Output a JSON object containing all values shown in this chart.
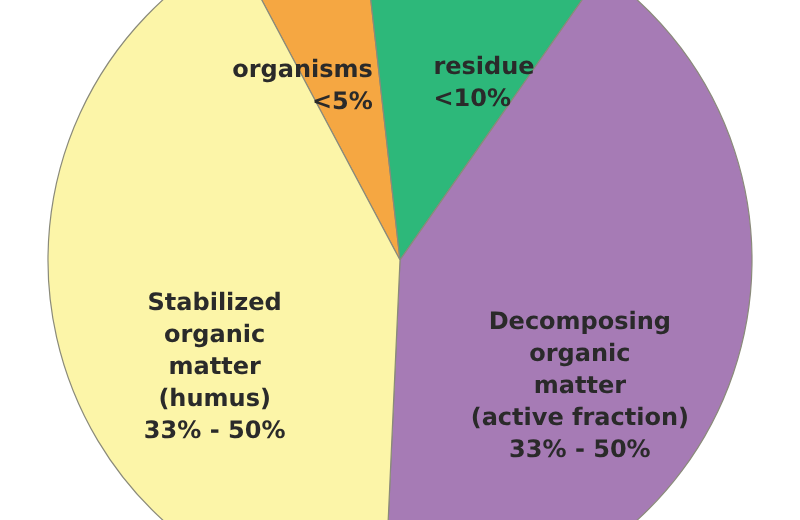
{
  "chart_data": {
    "type": "pie",
    "categories": [
      "organisms <5%",
      "residue <10%",
      "Decomposing organic matter (active fraction) 33% - 50%",
      "Stabilized organic matter (humus) 33% - 50%"
    ],
    "values": [
      6,
      11.5,
      41,
      41.5
    ],
    "colors": [
      "#f5a742",
      "#2db87a",
      "#a67bb5",
      "#fcf5a8"
    ]
  }
}
